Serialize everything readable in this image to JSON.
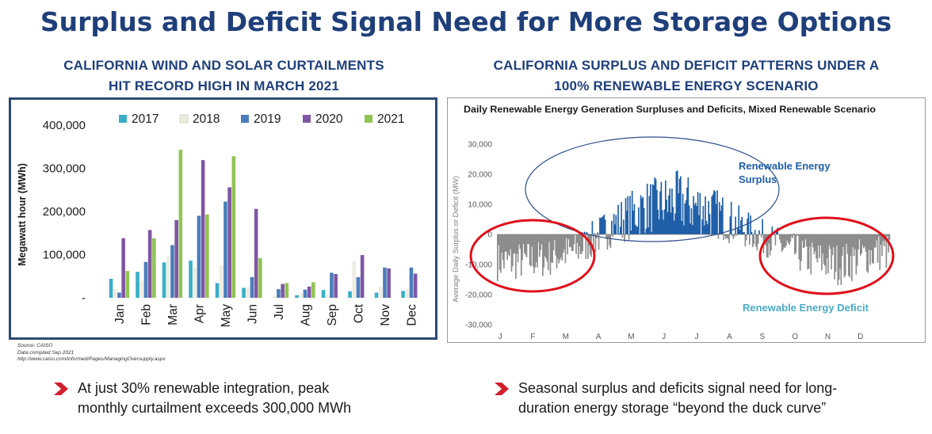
{
  "title": "Surplus and Deficit Signal Need for More Storage Options",
  "left_panel": {
    "subtitle_lines": [
      "CALIFORNIA WIND AND SOLAR CURTAILMENTS",
      "HIT RECORD HIGH IN MARCH 2021"
    ],
    "source_lines": [
      "Source: CAISO",
      "Data compiled Sep 2021",
      "http://www.caiso.com/informed/Pages/ManagingOversupply.aspx"
    ]
  },
  "right_panel": {
    "subtitle_lines": [
      "CALIFORNIA SURPLUS AND DEFICIT PATTERNS UNDER A",
      "100% RENEWABLE ENERGY SCENARIO"
    ]
  },
  "bullets": [
    {
      "lines": [
        "At just 30% renewable integration, peak",
        "monthly curtailment exceeds 300,000 MWh"
      ]
    },
    {
      "lines": [
        "Seasonal surplus and deficits signal need for long-",
        "duration energy storage “beyond the duck curve”"
      ]
    }
  ],
  "chart_data": [
    {
      "type": "bar",
      "title": "",
      "xlabel": "",
      "ylabel": "Megawatt hour (MWh)",
      "ylim": [
        0,
        400000
      ],
      "yticks": [
        "-",
        "100,000",
        "200,000",
        "300,000",
        "400,000"
      ],
      "legend_position": "top",
      "grid": false,
      "categories": [
        "Jan",
        "Feb",
        "Mar",
        "Apr",
        "May",
        "Jun",
        "Jul",
        "Aug",
        "Sep",
        "Oct",
        "Nov",
        "Dec"
      ],
      "series": [
        {
          "name": "2017",
          "color": "#3aaec8",
          "values": [
            44000,
            60000,
            82000,
            86000,
            34000,
            23000,
            0,
            6000,
            18000,
            15000,
            12000,
            16000
          ]
        },
        {
          "name": "2018",
          "color": "#eeece1",
          "values": [
            20000,
            40000,
            95000,
            70000,
            75000,
            25000,
            5000,
            10000,
            8000,
            85000,
            25000,
            20000
          ]
        },
        {
          "name": "2019",
          "color": "#4a7ebb",
          "values": [
            12000,
            83000,
            122000,
            190000,
            223000,
            48000,
            20000,
            19000,
            58000,
            48000,
            70000,
            70000
          ]
        },
        {
          "name": "2020",
          "color": "#7e57a3",
          "values": [
            138000,
            157000,
            180000,
            319000,
            256000,
            206000,
            32000,
            26000,
            55000,
            99000,
            68000,
            56000
          ]
        },
        {
          "name": "2021",
          "color": "#92c353",
          "values": [
            62000,
            138000,
            343000,
            193000,
            328000,
            92000,
            34000,
            36000,
            0,
            0,
            0,
            0
          ]
        }
      ]
    },
    {
      "type": "area",
      "title": "Daily Renewable Energy Generation Surpluses and Deficits, Mixed Renewable Scenario",
      "xlabel": "",
      "ylabel": "Average Daily Surplus or Deficit (MW)",
      "ylim": [
        -30000,
        30000
      ],
      "yticks": [
        "30,000",
        "20,000",
        "10,000",
        "0",
        "-10,000",
        "-20,000",
        "-30,000"
      ],
      "x_ticks": [
        "J",
        "F",
        "M",
        "A",
        "M",
        "J",
        "J",
        "A",
        "S",
        "O",
        "N",
        "D"
      ],
      "annotations": [
        "Renewable Energy Surplus",
        "Renewable Energy Deficit"
      ],
      "series": [
        {
          "name": "Surplus",
          "color": "#1f5fa8"
        },
        {
          "name": "Deficit",
          "color": "#8c8c8c"
        }
      ],
      "monthly_profile": {
        "x": [
          "J",
          "F",
          "M",
          "A",
          "M",
          "J",
          "J",
          "A",
          "S",
          "O",
          "N",
          "D"
        ],
        "mean": [
          -9000,
          -8000,
          -5000,
          3000,
          9000,
          11000,
          8000,
          2000,
          -3000,
          -8000,
          -10000,
          -6000
        ],
        "amplitude": [
          5000,
          5000,
          4500,
          5500,
          7000,
          8000,
          7000,
          5000,
          4500,
          5000,
          5500,
          5000
        ]
      }
    }
  ]
}
